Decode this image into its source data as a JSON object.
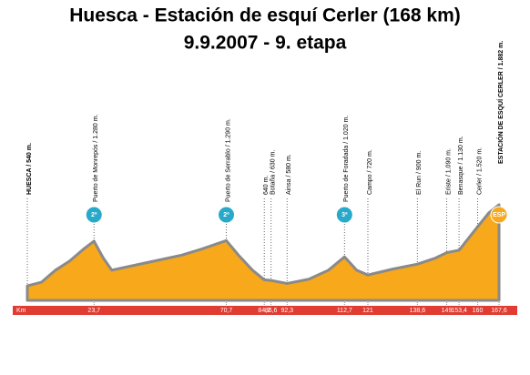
{
  "chart_data": {
    "type": "area",
    "title": "Huesca - Estación de esquí Cerler (168 km)",
    "subtitle": "9.9.2007 - 9. etapa",
    "x_label": "Km",
    "color": "#f7a81b",
    "x": [
      0,
      5,
      10,
      15,
      20,
      23.7,
      27,
      30,
      35,
      45,
      55,
      62,
      70.7,
      75,
      80,
      84.2,
      86.6,
      92.3,
      100,
      107,
      112.7,
      117,
      121,
      130,
      138.6,
      145,
      149,
      153.4,
      160,
      164,
      167.6
    ],
    "values": [
      540,
      600,
      800,
      950,
      1150,
      1280,
      1000,
      800,
      850,
      950,
      1050,
      1150,
      1290,
      1050,
      800,
      640,
      630,
      580,
      650,
      800,
      1020,
      800,
      720,
      820,
      900,
      1000,
      1090,
      1130,
      1520,
      1750,
      1882
    ],
    "xlim": [
      0,
      167.6
    ],
    "ylim": [
      300,
      3765
    ],
    "xticks": [
      {
        "value": 23.7,
        "label": "23,7"
      },
      {
        "value": 70.7,
        "label": "70,7"
      },
      {
        "value": 84.2,
        "label": "84,2"
      },
      {
        "value": 86.6,
        "label": "86,6"
      },
      {
        "value": 92.3,
        "label": "92,3"
      },
      {
        "value": 112.7,
        "label": "112,7"
      },
      121,
      {
        "value": 138.6,
        "label": "138,6"
      },
      149,
      {
        "value": 153.4,
        "label": "153,4"
      },
      160,
      {
        "value": 167.6,
        "label": "167,6"
      }
    ],
    "waypoints": [
      {
        "label": "HUESCA / 540 m.",
        "km": 0
      },
      {
        "label": "Puerto de Monrepós / 1.280 m.",
        "km": 23.7,
        "badge": "2ª"
      },
      {
        "label": "Puerto de Serrablo / 1.290 m.",
        "km": 70.7,
        "badge": "2ª"
      },
      {
        "label": "640 m.",
        "km": 84.2
      },
      {
        "label": "Botaña / 630 m.",
        "km": 86.6
      },
      {
        "label": "Ainsa / 580 m.",
        "km": 92.3
      },
      {
        "label": "Puerto de Foradada / 1.020 m.",
        "km": 112.7,
        "badge": "3ª"
      },
      {
        "label": "Campo / 720 m.",
        "km": 121
      },
      {
        "label": "El Run / 900 m.",
        "km": 138.6
      },
      {
        "label": "Eriste / 1.090 m.",
        "km": 149
      },
      {
        "label": "Benasque / 1.130 m.",
        "km": 153.4
      },
      {
        "label": "Cerler / 1.520 m.",
        "km": 160
      },
      {
        "label": "ESTACIÓN DE ESQUÍ CERLER / 1.882 m.",
        "km": 167.6,
        "badge": "ESP"
      }
    ]
  }
}
